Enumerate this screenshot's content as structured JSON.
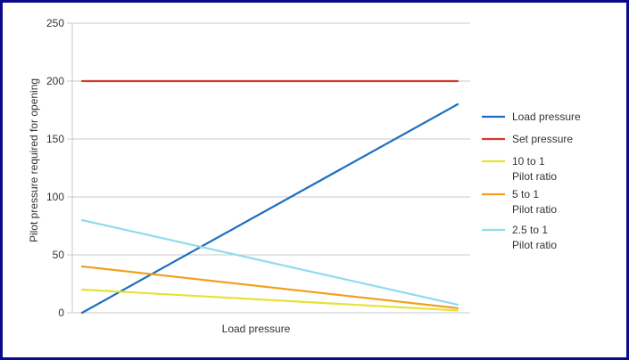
{
  "chart_data": {
    "type": "line",
    "xlabel": "Load pressure",
    "ylabel": "Pilot pressure required for opening",
    "ylim": [
      0,
      250
    ],
    "yticks": [
      0,
      50,
      100,
      150,
      200,
      250
    ],
    "xlim": [
      0,
      1
    ],
    "grid": "horizontal",
    "legend_position": "right",
    "series": [
      {
        "name": "Load pressure",
        "color": "#1e6fbf",
        "x": [
          0,
          1
        ],
        "y": [
          0,
          180
        ]
      },
      {
        "name": "Set pressure",
        "color": "#d33a2c",
        "x": [
          0,
          1
        ],
        "y": [
          200,
          200
        ]
      },
      {
        "name": "10 to 1\nPilot ratio",
        "color": "#e6e234",
        "x": [
          0,
          1
        ],
        "y": [
          20,
          2
        ]
      },
      {
        "name": "5 to 1\nPilot ratio",
        "color": "#f0a21e",
        "x": [
          0,
          1
        ],
        "y": [
          40,
          4
        ]
      },
      {
        "name": "2.5 to 1\nPilot ratio",
        "color": "#8fdcec",
        "x": [
          0,
          1
        ],
        "y": [
          80,
          7
        ]
      }
    ]
  }
}
